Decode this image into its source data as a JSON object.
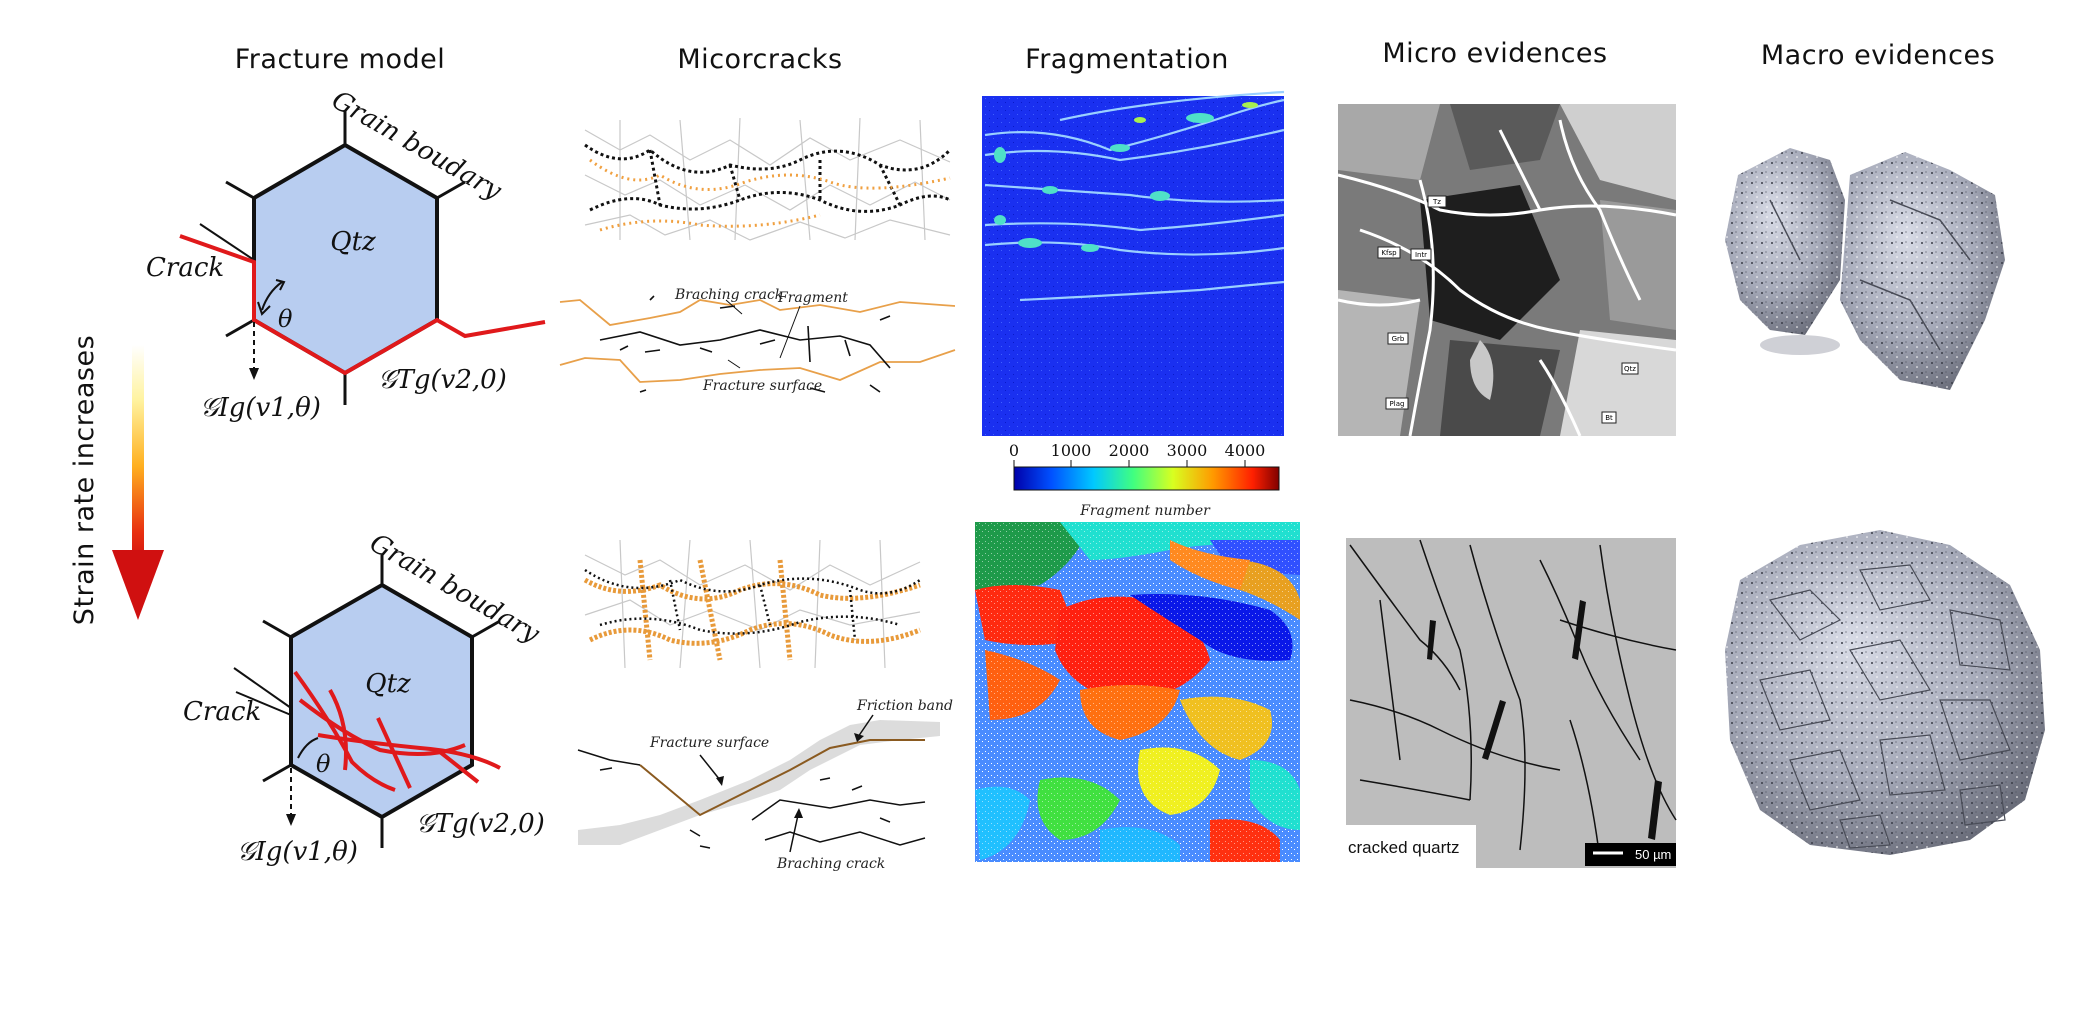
{
  "columns": {
    "fracture_model": "Fracture model",
    "microcracks": "Micorcracks",
    "fragmentation": "Fragmentation",
    "micro_evidences": "Micro evidences",
    "macro_evidences": "Macro evidences"
  },
  "arrow_label": "Strain rate increases",
  "model_top": {
    "mineral": "Qtz",
    "grain_boundary": "Grain boudary",
    "crack": "Crack",
    "theta": "θ",
    "g_ig": "𝒢Ig(v1,θ)",
    "g_tg": "𝒢Tg(v2,0)"
  },
  "model_bottom": {
    "mineral": "Qtz",
    "grain_boundary": "Grain boudary",
    "crack": "Crack",
    "theta": "θ",
    "g_ig": "𝒢Ig(v1,θ)",
    "g_tg": "𝒢Tg(v2,0)"
  },
  "micro_top": {
    "branching_crack": "Braching crack",
    "fragment": "Fragment",
    "fracture_surface": "Fracture surface"
  },
  "micro_bottom": {
    "friction_band": "Friction band",
    "fracture_surface": "Fracture surface",
    "branching_crack": "Braching crack"
  },
  "colorbar": {
    "ticks": [
      "0",
      "1000",
      "2000",
      "3000",
      "4000"
    ],
    "label": "Fragment number",
    "colors": [
      "#0000aa",
      "#0050ff",
      "#00c8ff",
      "#40ff80",
      "#d8ff20",
      "#ff9a00",
      "#ff2000",
      "#800000"
    ]
  },
  "micro_evidence": {
    "labels_top": [
      "Tz",
      "Kfsp",
      "Intr",
      "Grb",
      "Qtz",
      "Plag",
      "Bt"
    ],
    "caption_bottom": "cracked quartz",
    "scale_bar": "50 µm"
  },
  "colors": {
    "crack": "#e0191b",
    "grain": "#b8cdf0",
    "frag_background": "#1a2ef0",
    "orange_trace": "#e8a04a"
  }
}
